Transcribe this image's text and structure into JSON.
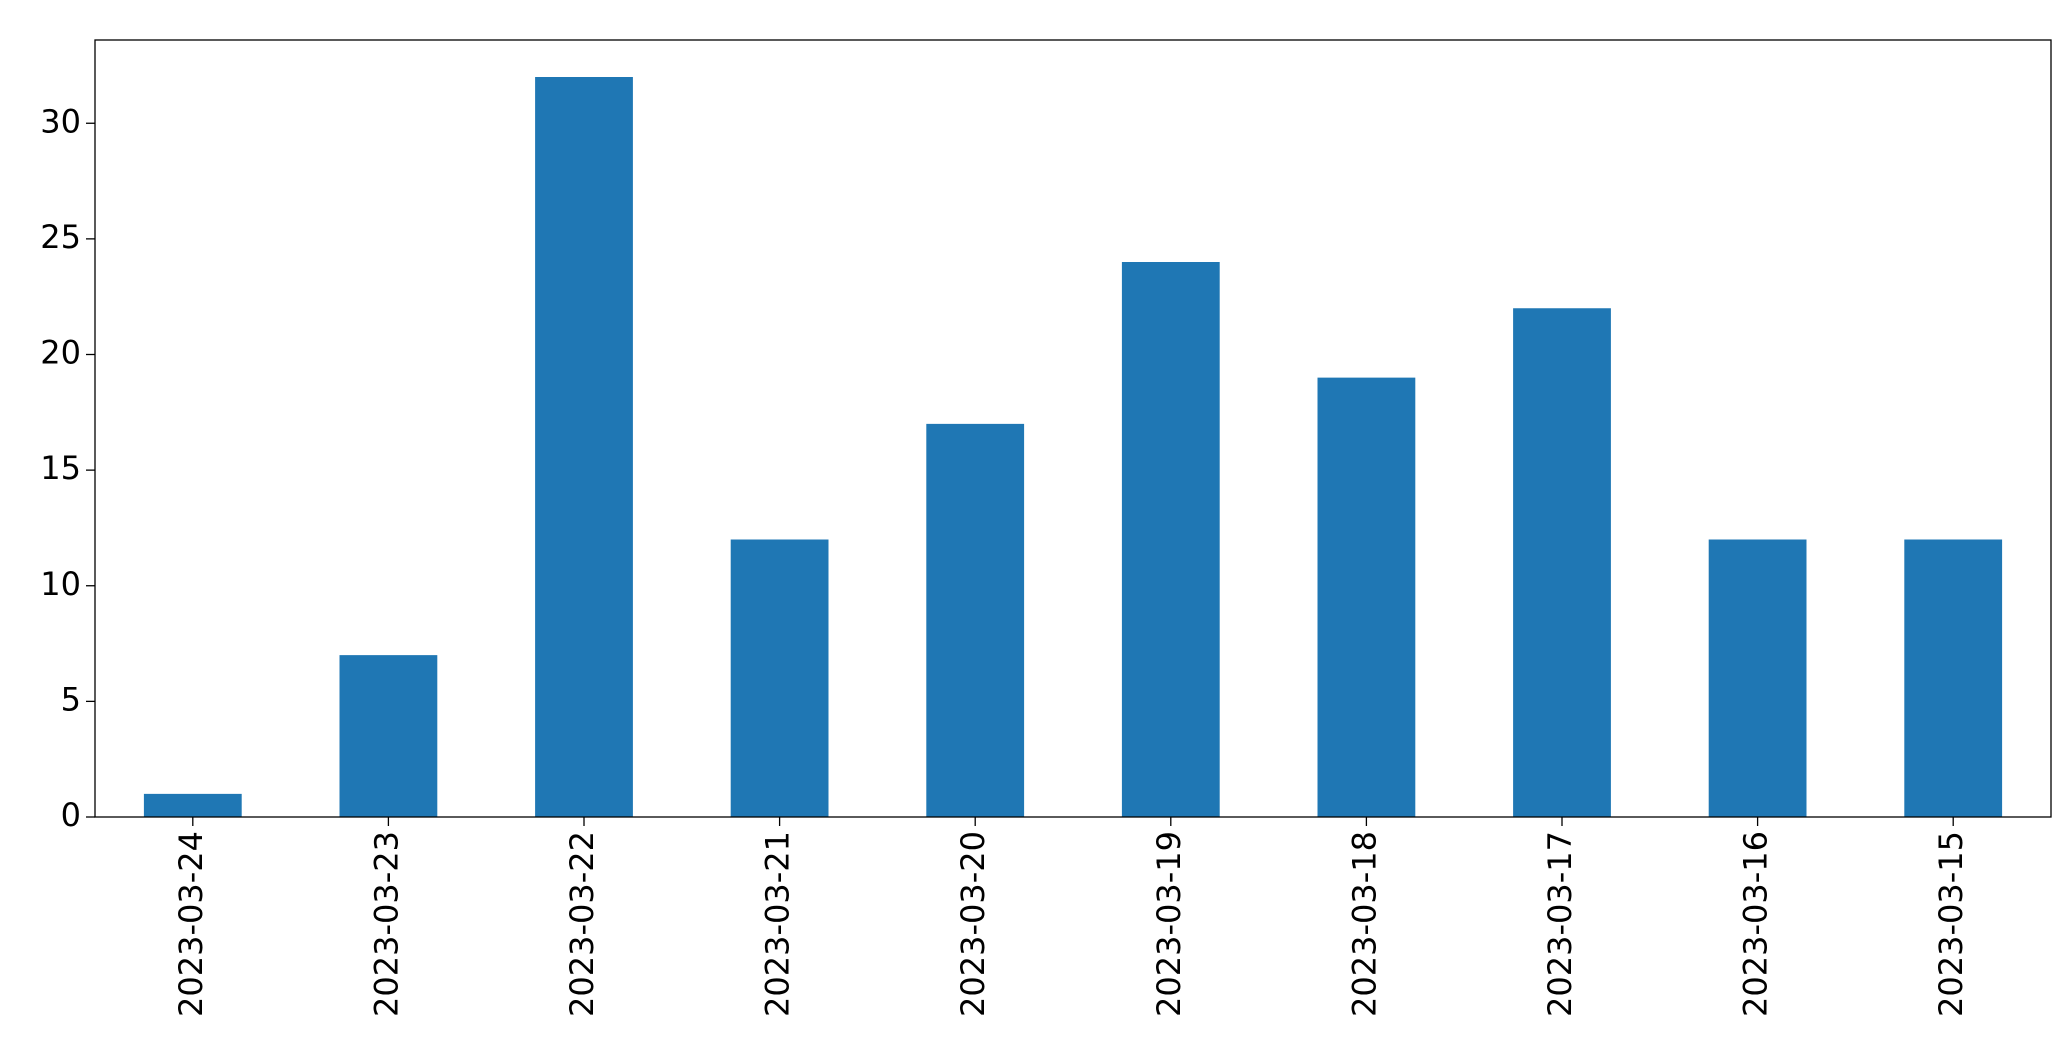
{
  "chart_data": {
    "type": "bar",
    "categories": [
      "2023-03-24",
      "2023-03-23",
      "2023-03-22",
      "2023-03-21",
      "2023-03-20",
      "2023-03-19",
      "2023-03-18",
      "2023-03-17",
      "2023-03-16",
      "2023-03-15"
    ],
    "values": [
      1,
      7,
      32,
      12,
      17,
      24,
      19,
      22,
      12,
      12
    ],
    "color": "#1f77b4",
    "ylim": [
      0,
      33.6
    ],
    "yticks": [
      0,
      5,
      10,
      15,
      20,
      25,
      30
    ],
    "grid": false
  }
}
